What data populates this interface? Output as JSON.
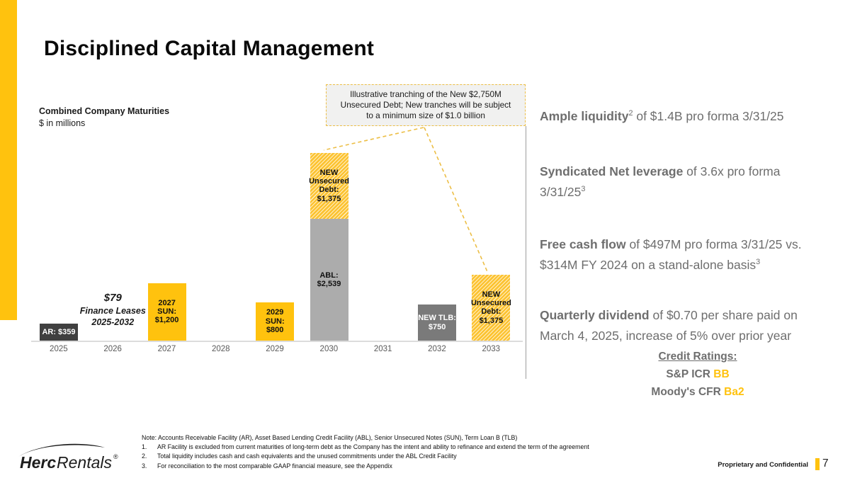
{
  "slide": {
    "title": "Disciplined Capital Management",
    "page_number": "7",
    "classification": "Proprietary and Confidential",
    "logo": {
      "brand_bold": "Herc",
      "brand_regular": "Rentals",
      "registered": "®"
    }
  },
  "callout": {
    "text": "Illustrative tranching of the New $2,750M Unsecured Debt; New tranches will be subject to a minimum size of $1.0 billion"
  },
  "chart_data": {
    "type": "bar",
    "title": "Combined Company Maturities",
    "subtitle": "$ in millions",
    "ylabel": "$ in millions",
    "categories": [
      "2025",
      "2026",
      "2027",
      "2028",
      "2029",
      "2030",
      "2031",
      "2032",
      "2033"
    ],
    "bars": [
      {
        "category": "2025",
        "segments": [
          {
            "name": "AR",
            "label": "AR: $359",
            "value": 359,
            "style": "dark"
          }
        ]
      },
      {
        "category": "2027",
        "segments": [
          {
            "name": "2027 SUN",
            "label": "2027 SUN:\n$1,200",
            "value": 1200,
            "style": "yellow"
          }
        ]
      },
      {
        "category": "2029",
        "segments": [
          {
            "name": "2029 SUN",
            "label": "2029 SUN:\n$800",
            "value": 800,
            "style": "yellow"
          }
        ]
      },
      {
        "category": "2030",
        "segments": [
          {
            "name": "ABL",
            "label": "ABL:\n$2,539",
            "value": 2539,
            "style": "gray"
          },
          {
            "name": "NEW Unsecured Debt",
            "label": "NEW\nUnsecured\nDebt:\n$1,375",
            "value": 1375,
            "style": "hatch"
          }
        ]
      },
      {
        "category": "2032",
        "segments": [
          {
            "name": "NEW TLB",
            "label": "NEW TLB:\n$750",
            "value": 750,
            "style": "midgray"
          }
        ]
      },
      {
        "category": "2033",
        "segments": [
          {
            "name": "NEW Unsecured Debt",
            "label": "NEW\nUnsecured\nDebt:\n$1,375",
            "value": 1375,
            "style": "hatch"
          }
        ]
      }
    ],
    "annotation": {
      "category": "2026",
      "line1": "$79",
      "line2": "Finance Leases",
      "line3": "2025-2032"
    },
    "legend": "none",
    "grid": "off"
  },
  "highlights": [
    {
      "lead": "Ample liquidity",
      "sup_lead": "2",
      "line1": " of $1.4B pro forma 3/31/25",
      "line2": "",
      "sup_end": ""
    },
    {
      "lead": "Syndicated Net leverage",
      "sup_lead": "",
      "line1": " of 3.6x pro forma",
      "line2": "3/31/25",
      "sup_end": "3"
    },
    {
      "lead": "Free cash flow",
      "sup_lead": "",
      "line1": " of $497M pro forma 3/31/25 vs.",
      "line2": "$314M FY 2024 on a stand-alone basis",
      "sup_end": "3"
    },
    {
      "lead": "Quarterly dividend",
      "sup_lead": "",
      "line1": " of $0.70 per share paid on",
      "line2": "March 4, 2025, increase of 5% over prior year",
      "sup_end": ""
    }
  ],
  "credit_ratings": {
    "title": "Credit Ratings:",
    "lines": [
      {
        "label": "S&P ICR ",
        "value": "BB"
      },
      {
        "label": "Moody's CFR ",
        "value": "Ba2"
      }
    ]
  },
  "notes": {
    "note": "Note: Accounts Receivable Facility (AR), Asset Based Lending Credit Facility (ABL), Senior Unsecured Notes (SUN), Term Loan B (TLB)",
    "items": [
      {
        "num": "1.",
        "text": "AR Facility is excluded from current maturities of long-term debt as the Company has the intent and ability to refinance and extend the term of the agreement"
      },
      {
        "num": "2.",
        "text": "Total liquidity includes cash and cash equivalents and the unused commitments under the ABL Credit Facility"
      },
      {
        "num": "3.",
        "text": "For reconciliation to the most comparable GAAP financial measure, see the Appendix"
      }
    ]
  },
  "colors": {
    "accent_yellow": "#FFC20E",
    "bar_dark_gray": "#404040",
    "bar_mid_gray": "#7A7A7A",
    "bar_light_gray": "#ACACAC",
    "body_text_gray": "#6E6E6E",
    "callout_border": "#ECBE45"
  }
}
